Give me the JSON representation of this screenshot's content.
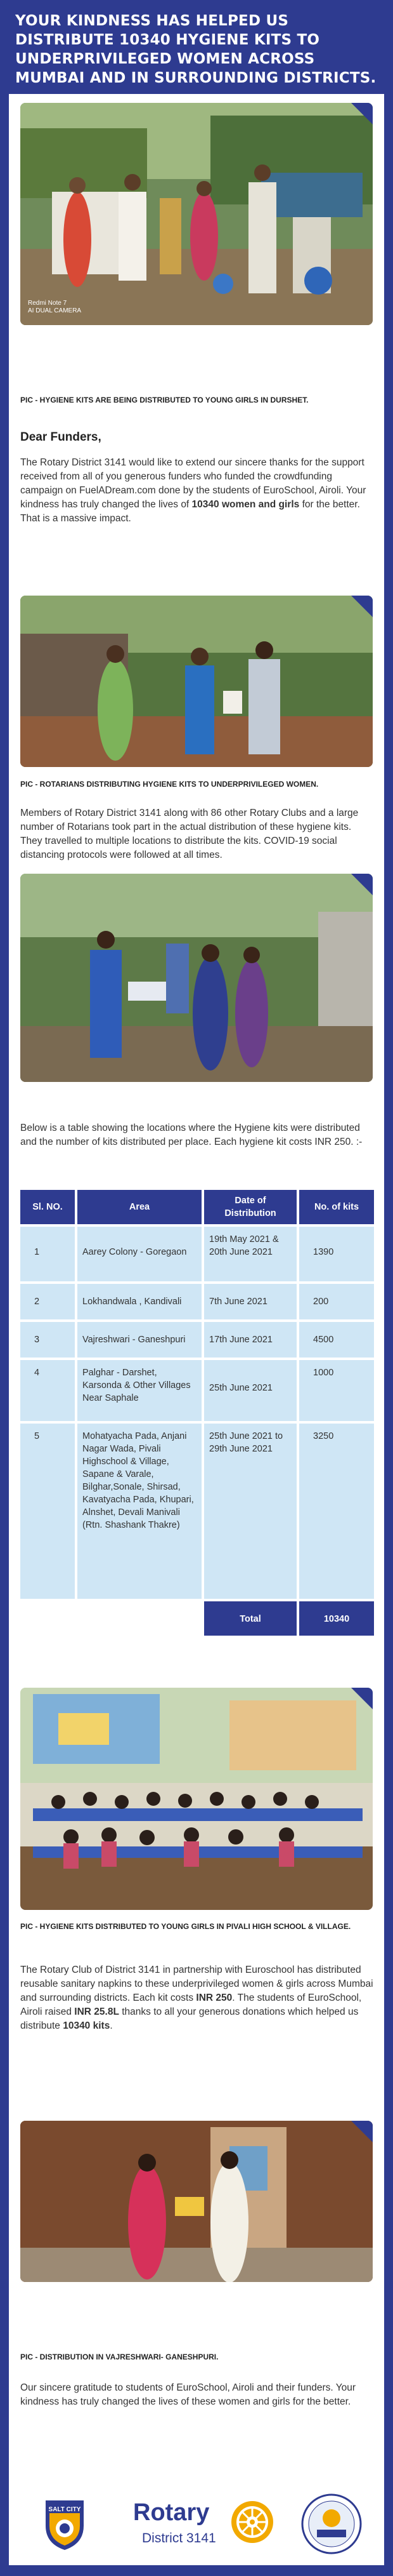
{
  "header": {
    "title": "YOUR KINDNESS HAS HELPED US DISTRIBUTE 10340 HYGIENE KITS TO UNDERPRIVILEGED WOMEN ACROSS MUMBAI AND IN SURROUNDING DISTRICTS."
  },
  "photo1": {
    "watermark_line1": "Redmi Note 7",
    "watermark_line2": "AI DUAL CAMERA"
  },
  "caption1": "PIC - HYGIENE KITS ARE BEING DISTRIBUTED TO YOUNG GIRLS IN DURSHET.",
  "greeting": "Dear Funders,",
  "intro": {
    "part1": "The Rotary District 3141 would like to extend our sincere thanks for the support received from all of you generous funders who funded the crowdfunding campaign on FuelADream.com done by the students of EuroSchool, Airoli. Your kindness has truly changed the lives of ",
    "bold": "10340 women and girls",
    "part2": " for the better. That is a massive impact."
  },
  "caption2": "PIC - ROTARIANS DISTRIBUTING HYGIENE KITS TO UNDERPRIVILEGED WOMEN.",
  "para2": "Members of Rotary District 3141 along with 86 other Rotary Clubs and a large number of Rotarians took part in the actual distribution of these hygiene kits. They travelled to multiple locations to distribute the kits. COVID-19 social distancing protocols were followed at all times.",
  "table_intro": "Below is a table showing the locations where the Hygiene kits were distributed and the number of kits distributed per place. Each hygiene kit costs INR 250. :-",
  "table": {
    "headers": [
      "Sl. NO.",
      "Area",
      "Date of Distribution",
      "No. of kits"
    ],
    "rows": [
      {
        "no": "1",
        "area": "Aarey Colony - Goregaon",
        "date": "19th May 2021 & 20th June 2021",
        "kits": "1390"
      },
      {
        "no": "2",
        "area": "Lokhandwala , Kandivali",
        "date": "7th June 2021",
        "kits": "200"
      },
      {
        "no": "3",
        "area": "Vajreshwari - Ganeshpuri",
        "date": "17th June 2021",
        "kits": "4500"
      },
      {
        "no": "4",
        "area": "Palghar - Darshet, Karsonda & Other Villages Near Saphale",
        "date": "25th June 2021",
        "kits": "1000"
      },
      {
        "no": "5",
        "area": "Mohatyacha Pada, Anjani Nagar Wada, Pivali Highschool & Village, Sapane & Varale, Bilghar,Sonale, Shirsad, Kavatyacha Pada, Khupari, Alnshet, Devali Manivali (Rtn. Shashank Thakre)",
        "date": "25th June 2021 to 29th June 2021",
        "kits": "3250"
      }
    ],
    "total_label": "Total",
    "total_value": "10340"
  },
  "caption4": "PIC - HYGIENE KITS DISTRIBUTED TO YOUNG GIRLS IN PIVALI HIGH SCHOOL & VILLAGE.",
  "para4": {
    "part1": "The Rotary Club of District 3141 in partnership with Euroschool has distributed reusable sanitary napkins to these underprivileged women & girls across Mumbai and surrounding districts. Each kit costs ",
    "bold1": "INR 250",
    "part2": ". The students of EuroSchool, Airoli raised ",
    "bold2": "INR 25.8L",
    "part3": " thanks to all your generous donations which helped us distribute ",
    "bold3": "10340 kits",
    "part4": "."
  },
  "caption5": "PIC - DISTRIBUTION IN VAJRESHWARI- GANESHPURI.",
  "closing": "Our sincere gratitude to students of EuroSchool, Airoli and their funders. Your kindness has truly changed the lives of these women and girls for the better.",
  "footer": {
    "salt_city": "SALT CITY",
    "rotary": "Rotary",
    "district": "District 3141"
  },
  "colors": {
    "brand_blue": "#2e3b90",
    "table_light": "#cfe6f5",
    "rotary_gold": "#f2a900"
  }
}
